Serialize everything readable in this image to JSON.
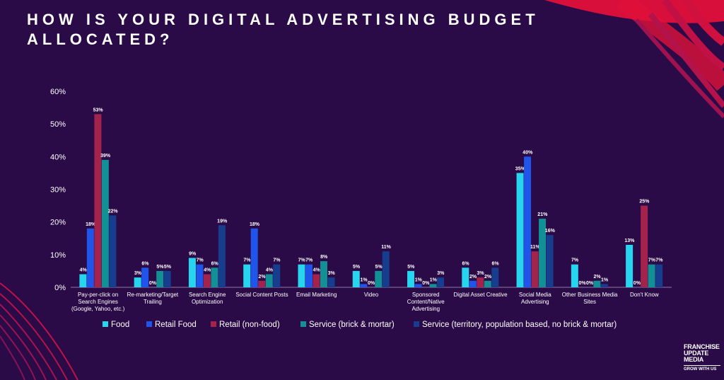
{
  "title": "HOW IS YOUR DIGITAL ADVERTISING BUDGET ALLOCATED?",
  "colors": {
    "background": "#2b0b47",
    "accent": "#e0103a"
  },
  "logo": {
    "name": "FRANCHISE\nUPDATE\nMEDIA",
    "tagline": "GROW WITH US"
  },
  "chart_data": {
    "type": "bar",
    "ylim": [
      0,
      60
    ],
    "yticks": [
      "0%",
      "10%",
      "20%",
      "30%",
      "40%",
      "50%",
      "60%"
    ],
    "grid": false,
    "legend_position": "bottom",
    "categories": [
      [
        "Pay-per-click on",
        "Search Engines",
        "(Google, Yahoo, etc.)"
      ],
      [
        "Re-marketing/Target",
        "Trailing"
      ],
      [
        "Search Engine",
        "Optimization"
      ],
      [
        "Social Content Posts"
      ],
      [
        "Email Marketing"
      ],
      [
        "Video"
      ],
      [
        "Sponsored",
        "Content/Native",
        "Advertising"
      ],
      [
        "Digital Asset Creative"
      ],
      [
        "Social Media",
        "Advertising"
      ],
      [
        "Other Business Media",
        "Sites"
      ],
      [
        "Don't Know"
      ]
    ],
    "series": [
      {
        "name": "Food",
        "color": "#27d6ee",
        "values": [
          4,
          3,
          9,
          7,
          7,
          5,
          5,
          6,
          35,
          7,
          13
        ]
      },
      {
        "name": "Retail Food",
        "color": "#1f55ea",
        "values": [
          18,
          6,
          7,
          18,
          7,
          1,
          1,
          2,
          40,
          0,
          0
        ]
      },
      {
        "name": "Retail (non-food)",
        "color": "#a3234d",
        "values": [
          53,
          0,
          4,
          2,
          4,
          0,
          0,
          3,
          11,
          0,
          25
        ]
      },
      {
        "name": "Service (brick & mortar)",
        "color": "#129095",
        "values": [
          39,
          5,
          6,
          4,
          8,
          5,
          1,
          2,
          21,
          2,
          7
        ]
      },
      {
        "name": "Service (territory, population based, no brick & mortar)",
        "color": "#173d8f",
        "values": [
          22,
          5,
          19,
          7,
          3,
          11,
          3,
          6,
          16,
          1,
          7
        ]
      }
    ]
  }
}
